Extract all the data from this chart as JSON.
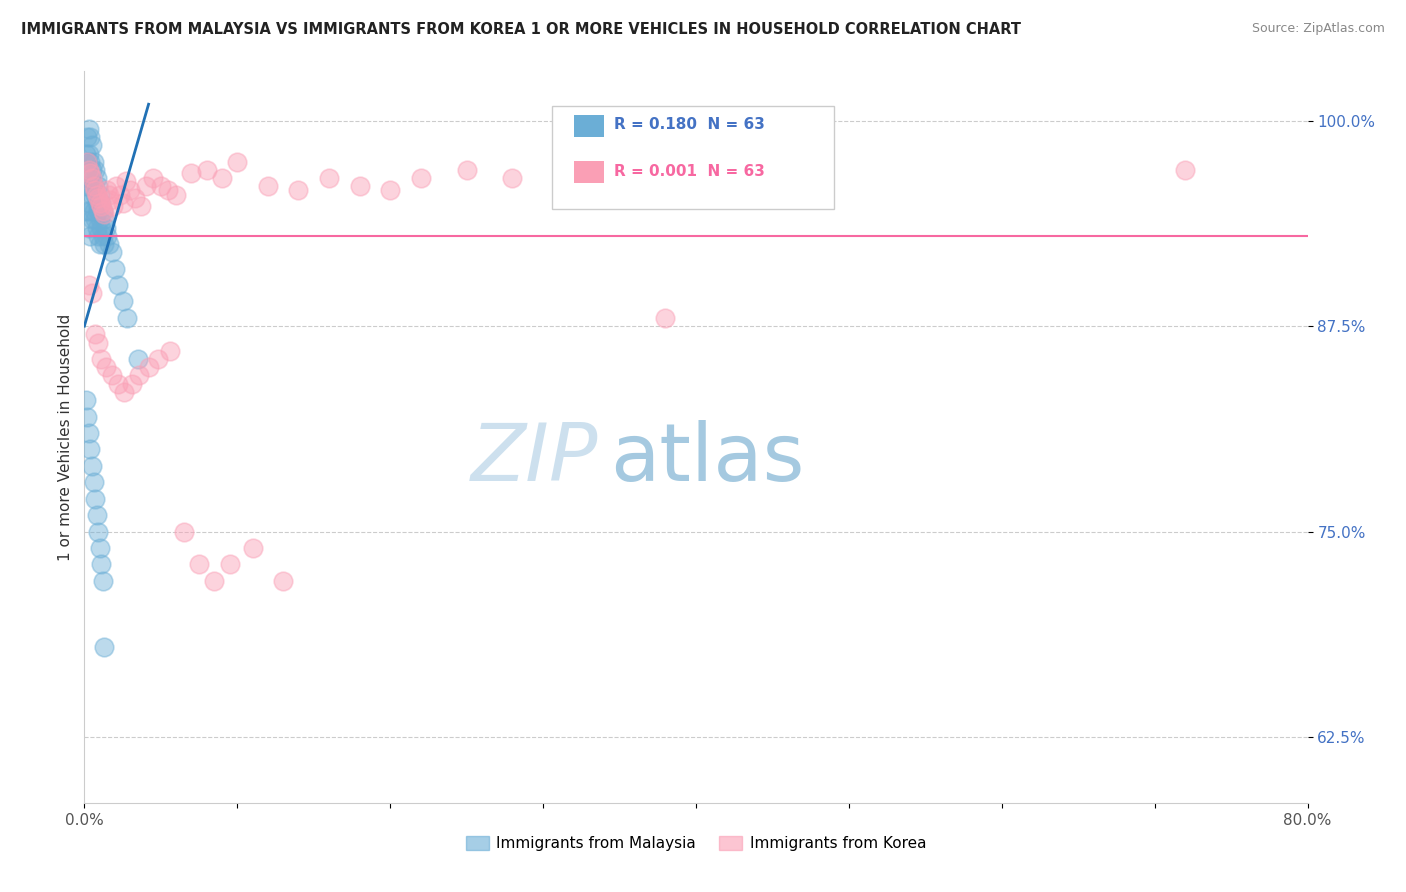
{
  "title": "IMMIGRANTS FROM MALAYSIA VS IMMIGRANTS FROM KOREA 1 OR MORE VEHICLES IN HOUSEHOLD CORRELATION CHART",
  "source": "Source: ZipAtlas.com",
  "ylabel": "1 or more Vehicles in Household",
  "color_malaysia": "#6baed6",
  "color_korea": "#fa9fb5",
  "color_trend_malaysia": "#2171b5",
  "color_trend_korea": "#f768a1",
  "watermark_zip": "ZIP",
  "watermark_atlas": "atlas",
  "background": "#ffffff",
  "xlim": [
    0.0,
    0.8
  ],
  "ylim": [
    0.585,
    1.03
  ],
  "yticks": [
    0.625,
    0.75,
    0.875,
    1.0
  ],
  "ytick_labels": [
    "62.5%",
    "75.0%",
    "87.5%",
    "100.0%"
  ],
  "xticks": [
    0.0,
    0.1,
    0.2,
    0.3,
    0.4,
    0.5,
    0.6,
    0.7,
    0.8
  ],
  "xtick_labels": [
    "0.0%",
    "",
    "",
    "",
    "",
    "",
    "",
    "",
    "80.0%"
  ],
  "korea_trend_y": 0.93,
  "malaysia_x": [
    0.001,
    0.001,
    0.002,
    0.002,
    0.002,
    0.002,
    0.003,
    0.003,
    0.003,
    0.003,
    0.003,
    0.004,
    0.004,
    0.004,
    0.004,
    0.004,
    0.005,
    0.005,
    0.005,
    0.005,
    0.006,
    0.006,
    0.006,
    0.007,
    0.007,
    0.007,
    0.008,
    0.008,
    0.008,
    0.009,
    0.009,
    0.009,
    0.01,
    0.01,
    0.01,
    0.011,
    0.011,
    0.012,
    0.012,
    0.013,
    0.013,
    0.014,
    0.015,
    0.016,
    0.018,
    0.02,
    0.022,
    0.025,
    0.028,
    0.035,
    0.001,
    0.002,
    0.003,
    0.004,
    0.005,
    0.006,
    0.007,
    0.008,
    0.009,
    0.01,
    0.011,
    0.012,
    0.013
  ],
  "malaysia_y": [
    0.98,
    0.965,
    0.99,
    0.975,
    0.96,
    0.945,
    0.995,
    0.98,
    0.965,
    0.95,
    0.935,
    0.99,
    0.975,
    0.96,
    0.945,
    0.93,
    0.985,
    0.97,
    0.955,
    0.94,
    0.975,
    0.96,
    0.945,
    0.97,
    0.955,
    0.94,
    0.965,
    0.95,
    0.935,
    0.96,
    0.945,
    0.93,
    0.955,
    0.94,
    0.925,
    0.95,
    0.935,
    0.945,
    0.93,
    0.94,
    0.925,
    0.935,
    0.93,
    0.925,
    0.92,
    0.91,
    0.9,
    0.89,
    0.88,
    0.855,
    0.83,
    0.82,
    0.81,
    0.8,
    0.79,
    0.78,
    0.77,
    0.76,
    0.75,
    0.74,
    0.73,
    0.72,
    0.68
  ],
  "korea_x": [
    0.002,
    0.003,
    0.004,
    0.005,
    0.006,
    0.007,
    0.008,
    0.009,
    0.01,
    0.011,
    0.012,
    0.013,
    0.015,
    0.016,
    0.017,
    0.019,
    0.021,
    0.023,
    0.025,
    0.027,
    0.03,
    0.033,
    0.037,
    0.04,
    0.045,
    0.05,
    0.055,
    0.06,
    0.07,
    0.08,
    0.09,
    0.1,
    0.12,
    0.14,
    0.16,
    0.18,
    0.2,
    0.22,
    0.25,
    0.28,
    0.32,
    0.38,
    0.72,
    0.003,
    0.005,
    0.007,
    0.009,
    0.011,
    0.014,
    0.018,
    0.022,
    0.026,
    0.031,
    0.036,
    0.042,
    0.048,
    0.056,
    0.065,
    0.075,
    0.085,
    0.095,
    0.11,
    0.13
  ],
  "korea_y": [
    0.975,
    0.97,
    0.968,
    0.965,
    0.96,
    0.958,
    0.955,
    0.953,
    0.95,
    0.948,
    0.945,
    0.943,
    0.958,
    0.955,
    0.952,
    0.948,
    0.96,
    0.955,
    0.95,
    0.963,
    0.958,
    0.953,
    0.948,
    0.96,
    0.965,
    0.96,
    0.958,
    0.955,
    0.968,
    0.97,
    0.965,
    0.975,
    0.96,
    0.958,
    0.965,
    0.96,
    0.958,
    0.965,
    0.97,
    0.965,
    0.96,
    0.88,
    0.97,
    0.9,
    0.895,
    0.87,
    0.865,
    0.855,
    0.85,
    0.845,
    0.84,
    0.835,
    0.84,
    0.845,
    0.85,
    0.855,
    0.86,
    0.75,
    0.73,
    0.72,
    0.73,
    0.74,
    0.72
  ]
}
